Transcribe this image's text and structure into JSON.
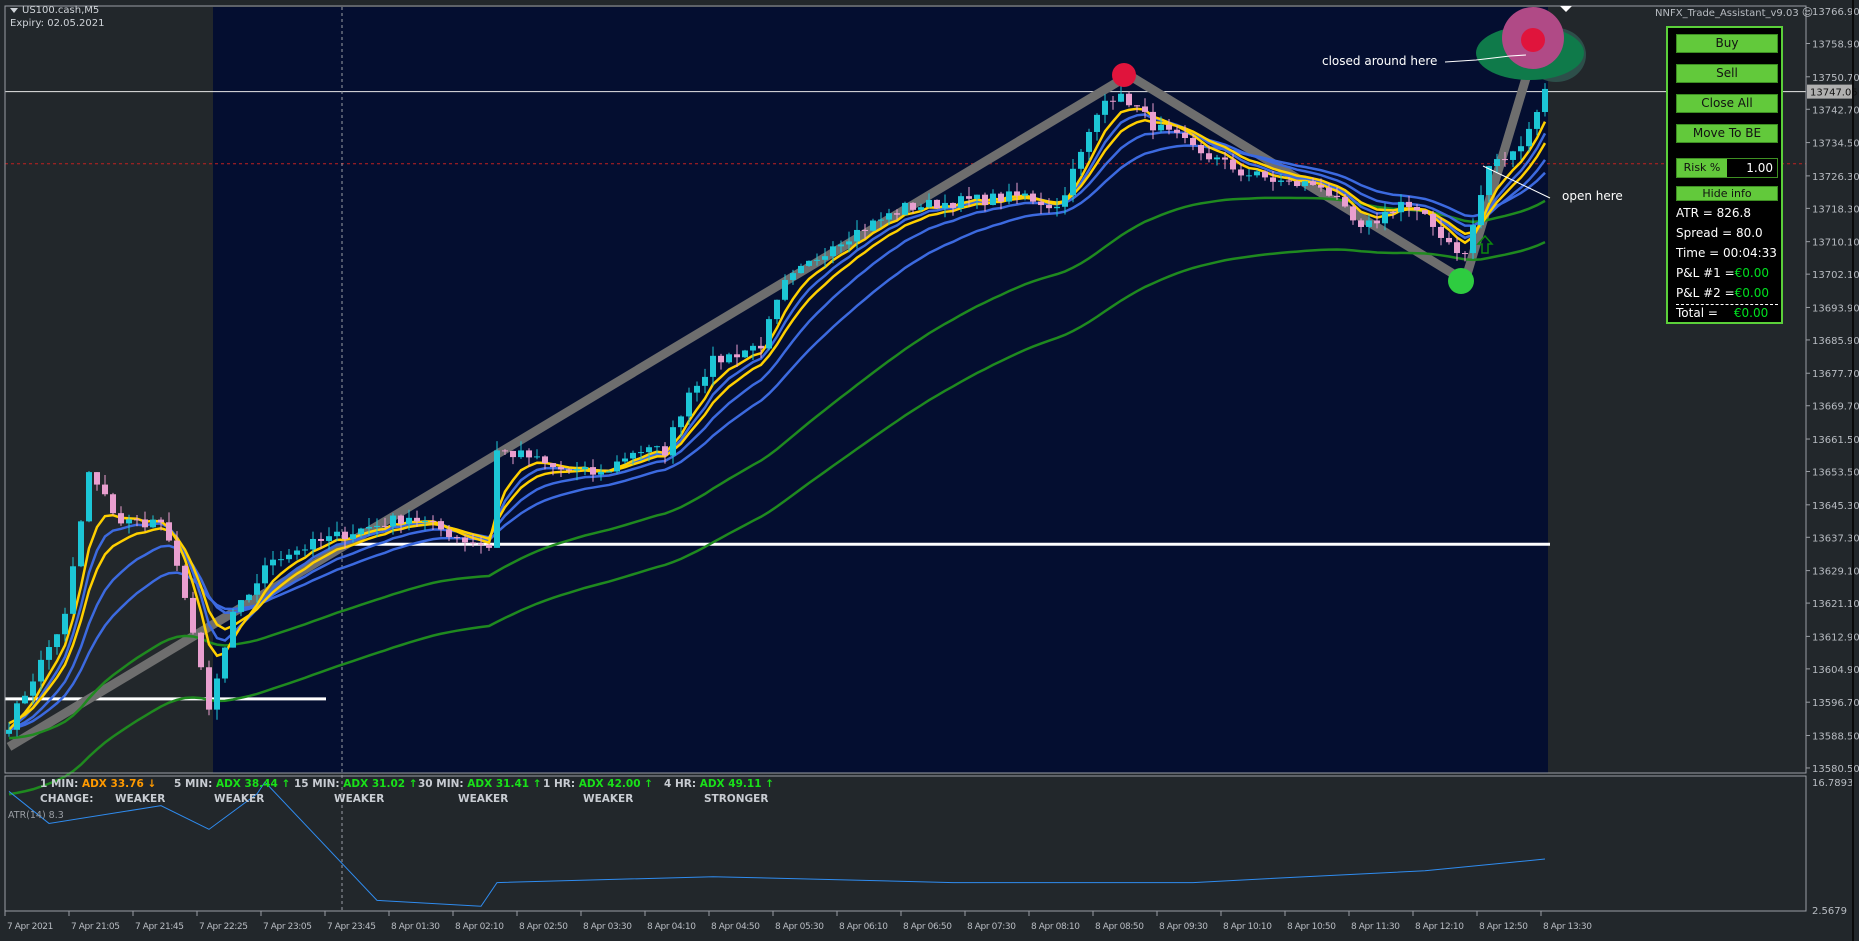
{
  "header": {
    "symbol": "US100.cash,M5",
    "expiry": "Expiry: 02.05.2021",
    "ea_name": "NNFX_Trade_Assistant_v9.03"
  },
  "colors": {
    "chart_bg": "#22272b",
    "session_bg": "#040e30",
    "bull_candle": "#1cc6d6",
    "bear_candle": "#e99fcf",
    "ma_yellow": "#ffd000",
    "ma_blue": "#3c6ae0",
    "ma_green": "#1f8a1f",
    "zigzag": "#6e6e6e",
    "panel_green": "#62c93b",
    "profit_green": "#00e020"
  },
  "price_axis": {
    "labels": [
      "13766.90",
      "13758.90",
      "13750.70",
      "13742.70",
      "13734.50",
      "13726.30",
      "13718.30",
      "13710.10",
      "13702.10",
      "13693.90",
      "13685.90",
      "13677.70",
      "13669.70",
      "13661.50",
      "13653.50",
      "13645.30",
      "13637.30",
      "13629.10",
      "13621.10",
      "13612.90",
      "13604.90",
      "13596.70",
      "13588.50",
      "13580.50"
    ],
    "current_price": "13747.05"
  },
  "time_axis": {
    "labels": [
      "7 Apr 2021",
      "7 Apr 21:05",
      "7 Apr 21:45",
      "7 Apr 22:25",
      "7 Apr 23:05",
      "7 Apr 23:45",
      "8 Apr 01:30",
      "8 Apr 02:10",
      "8 Apr 02:50",
      "8 Apr 03:30",
      "8 Apr 04:10",
      "8 Apr 04:50",
      "8 Apr 05:30",
      "8 Apr 06:10",
      "8 Apr 06:50",
      "8 Apr 07:30",
      "8 Apr 08:10",
      "8 Apr 08:50",
      "8 Apr 09:30",
      "8 Apr 10:10",
      "8 Apr 10:50",
      "8 Apr 11:30",
      "8 Apr 12:10",
      "8 Apr 12:50",
      "8 Apr 13:30"
    ]
  },
  "price_path": [
    [
      "7 Apr 20:25",
      13591.4
    ],
    [
      "7 Apr 21:00",
      13617.7
    ],
    [
      "7 Apr 21:15",
      13652.8
    ],
    [
      "7 Apr 21:35",
      13641.1
    ],
    [
      "7 Apr 22:00",
      13641.1
    ],
    [
      "7 Apr 22:15",
      13623.5
    ],
    [
      "7 Apr 22:30",
      13594.3
    ],
    [
      "7 Apr 22:45",
      13617.7
    ],
    [
      "7 Apr 23:10",
      13632.3
    ],
    [
      "7 Apr 23:55",
      13638.2
    ],
    [
      "8 Apr 01:40",
      13642.5
    ],
    [
      "8 Apr 02:15",
      13636.7
    ],
    [
      "8 Apr 02:30",
      13635.2
    ],
    [
      "8 Apr 02:35",
      13658.6
    ],
    [
      "8 Apr 02:55",
      13657.1
    ],
    [
      "8 Apr 03:10",
      13654.2
    ],
    [
      "8 Apr 03:40",
      13652.8
    ],
    [
      "8 Apr 04:00",
      13658.6
    ],
    [
      "8 Apr 04:20",
      13658.6
    ],
    [
      "8 Apr 04:35",
      13673.2
    ],
    [
      "8 Apr 04:50",
      13680.5
    ],
    [
      "8 Apr 05:20",
      13684.9
    ],
    [
      "8 Apr 05:35",
      13699.5
    ],
    [
      "8 Apr 06:05",
      13709.7
    ],
    [
      "8 Apr 06:50",
      13718.5
    ],
    [
      "8 Apr 07:20",
      13719.9
    ],
    [
      "8 Apr 08:05",
      13721.4
    ],
    [
      "8 Apr 08:25",
      13718.5
    ],
    [
      "8 Apr 08:40",
      13731.6
    ],
    [
      "8 Apr 08:55",
      13746.2
    ],
    [
      "8 Apr 09:10",
      13744.8
    ],
    [
      "8 Apr 09:25",
      13738.9
    ],
    [
      "8 Apr 09:50",
      13733.1
    ],
    [
      "8 Apr 10:20",
      13727.2
    ],
    [
      "8 Apr 10:50",
      13724.3
    ],
    [
      "8 Apr 11:10",
      13724.3
    ],
    [
      "8 Apr 11:35",
      13712.6
    ],
    [
      "8 Apr 12:00",
      13719.9
    ],
    [
      "8 Apr 12:15",
      13715.6
    ],
    [
      "8 Apr 12:35",
      13708.3
    ],
    [
      "8 Apr 12:40",
      13706.8
    ],
    [
      "8 Apr 12:55",
      13728.7
    ],
    [
      "8 Apr 13:10",
      13731.6
    ],
    [
      "8 Apr 13:25",
      13741.9
    ],
    [
      "8 Apr 13:30",
      13748.6
    ]
  ],
  "zigzag": [
    [
      "7 Apr 20:25",
      13585.7
    ],
    [
      "8 Apr 09:10",
      13751.1
    ],
    [
      "8 Apr 12:40",
      13700.4
    ],
    [
      "8 Apr 13:25",
      13759.4
    ]
  ],
  "levels": {
    "bid_line": 13747.05,
    "red_dashed": 13729.3,
    "white_level": 13635.6,
    "left_white_level": 13597.5
  },
  "atr": {
    "label": "ATR(14) 8.3",
    "max_label": "16.7893",
    "min_label": "2.5679",
    "range": [
      2.5679,
      16.7893
    ],
    "path": [
      [
        "7 Apr 20:25",
        15.75
      ],
      [
        "7 Apr 20:50",
        12.22
      ],
      [
        "7 Apr 22:00",
        14.18
      ],
      [
        "7 Apr 22:30",
        11.57
      ],
      [
        "7 Apr 23:00",
        15.48
      ],
      [
        "7 Apr 23:05",
        16.79
      ],
      [
        "8 Apr 01:20",
        3.74
      ],
      [
        "8 Apr 02:25",
        3.09
      ],
      [
        "8 Apr 02:35",
        5.7
      ],
      [
        "8 Apr 04:50",
        6.35
      ],
      [
        "8 Apr 07:20",
        5.7
      ],
      [
        "8 Apr 09:50",
        5.7
      ],
      [
        "8 Apr 11:00",
        6.35
      ],
      [
        "8 Apr 12:15",
        7.0
      ],
      [
        "8 Apr 13:30",
        8.3
      ]
    ]
  },
  "adx": {
    "items": [
      {
        "tf": "1 MIN:",
        "value": "ADX 33.76",
        "arrow": "↓",
        "change": "WEAKER",
        "trend": "down"
      },
      {
        "tf": "5 MIN:",
        "value": "ADX 38.44",
        "arrow": "↑",
        "change": "WEAKER",
        "trend": "up"
      },
      {
        "tf": "15 MIN:",
        "value": "ADX 31.02",
        "arrow": "↑",
        "change": "WEAKER",
        "trend": "up"
      },
      {
        "tf": "30 MIN:",
        "value": "ADX 31.41",
        "arrow": "↑",
        "change": "WEAKER",
        "trend": "up"
      },
      {
        "tf": "1 HR:",
        "value": "ADX 42.00",
        "arrow": "↑",
        "change": "WEAKER",
        "trend": "up"
      },
      {
        "tf": "4 HR:",
        "value": "ADX 49.11",
        "arrow": "↑",
        "change": "STRONGER",
        "trend": "up"
      }
    ],
    "change_label": "CHANGE:"
  },
  "annotations": {
    "closed": "closed around here",
    "open": "open here"
  },
  "trade_panel": {
    "buy": "Buy",
    "sell": "Sell",
    "close_all": "Close All",
    "move_to_be": "Move To BE",
    "risk_label": "Risk %",
    "risk_value": "1.00",
    "hide_info": "Hide info",
    "atr": "ATR = 826.8",
    "spread": "Spread = 80.0",
    "time": "Time = 00:04:33",
    "pl1_label": "P&L #1 =",
    "pl1_value": "€0.00",
    "pl2_label": "P&L #2 =",
    "pl2_value": "€0.00",
    "total_label": "Total =",
    "total_value": "€0.00"
  }
}
